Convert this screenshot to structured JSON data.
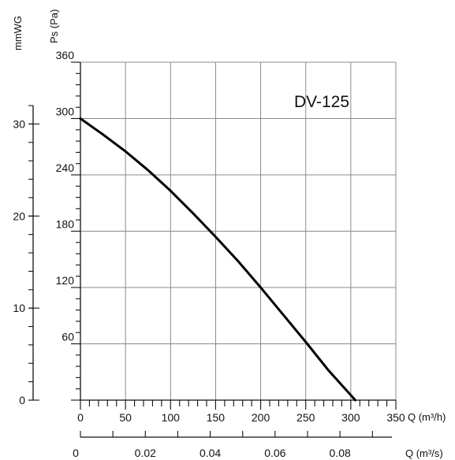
{
  "chart_data": {
    "type": "line",
    "model": "DV-125",
    "x_primary": {
      "label": "Q (m³/h)",
      "range": [
        0,
        350
      ],
      "ticks": [
        0,
        50,
        100,
        150,
        200,
        250,
        300,
        350
      ]
    },
    "x_secondary": {
      "label": "Q (m³/s)",
      "ticks": [
        {
          "value": 0,
          "label": "0"
        },
        {
          "value": 0.02,
          "label": "0.02"
        },
        {
          "value": 0.04,
          "label": "0.04"
        },
        {
          "value": 0.06,
          "label": "0.06"
        },
        {
          "value": 0.08,
          "label": "0.08"
        }
      ]
    },
    "y_primary": {
      "label": "Ps (Pa)",
      "range": [
        0,
        360
      ],
      "ticks": [
        60,
        120,
        180,
        240,
        300,
        360
      ]
    },
    "y_secondary": {
      "label": "mmWG",
      "ticks": [
        0,
        10,
        20,
        30
      ]
    },
    "grid": true,
    "series": [
      {
        "x": [
          0,
          25,
          50,
          75,
          100,
          125,
          150,
          175,
          200,
          225,
          250,
          275,
          305
        ],
        "y": [
          300,
          283,
          265,
          245,
          223,
          199,
          174,
          148,
          120,
          91,
          62,
          32,
          0
        ]
      }
    ]
  }
}
